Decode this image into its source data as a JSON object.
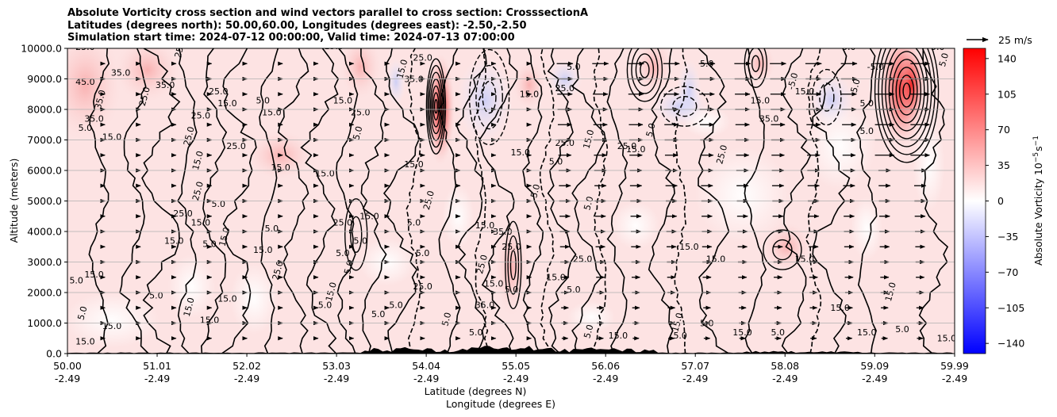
{
  "chart_data": {
    "type": "heatmap",
    "title_lines": [
      "Absolute Vorticity cross section and wind vectors parallel to cross section: CrosssectionA",
      "Latitudes (degrees north): 50.00,60.00, Longitudes (degrees east): -2.50,-2.50",
      "Simulation start time: 2024-07-12 00:00:00, Valid time: 2024-07-13 07:00:00"
    ],
    "ylabel": "Altitude (meters)",
    "xlabel_lines": [
      "Latitude (degrees N)",
      "Longitude (degrees E)"
    ],
    "ylim": [
      0,
      10000
    ],
    "y_ticks": [
      "0.0",
      "1000.0",
      "2000.0",
      "3000.0",
      "4000.0",
      "5000.0",
      "6000.0",
      "7000.0",
      "8000.0",
      "9000.0",
      "10000.0"
    ],
    "x_ticks": [
      {
        "lat": "50.00",
        "lon": "-2.49"
      },
      {
        "lat": "51.01",
        "lon": "-2.49"
      },
      {
        "lat": "52.02",
        "lon": "-2.49"
      },
      {
        "lat": "53.03",
        "lon": "-2.49"
      },
      {
        "lat": "54.04",
        "lon": "-2.49"
      },
      {
        "lat": "55.05",
        "lon": "-2.49"
      },
      {
        "lat": "56.06",
        "lon": "-2.49"
      },
      {
        "lat": "57.07",
        "lon": "-2.49"
      },
      {
        "lat": "58.08",
        "lon": "-2.49"
      },
      {
        "lat": "59.09",
        "lon": "-2.49"
      },
      {
        "lat": "59.99",
        "lon": "-2.49"
      }
    ],
    "colorbar": {
      "label": "Absolute Vorticity 10",
      "label_sup": "−5",
      "label_unit": "s",
      "label_unit_sup": "−1",
      "ticks": [
        "140",
        "105",
        "70",
        "35",
        "0",
        "−35",
        "−70",
        "−105",
        "−140"
      ],
      "range": [
        -150,
        150
      ],
      "colors": [
        "#0000ff",
        "#ffffff",
        "#ff0000"
      ]
    },
    "quiver_key": "25 m/s",
    "grid": "horizontal",
    "contour_labels": [
      {
        "t": "25.0",
        "x": 50.2,
        "y": 9950
      },
      {
        "t": "25.0",
        "x": 51.3,
        "y": 9980
      },
      {
        "t": "15.0",
        "x": 53.0,
        "y": 9980
      },
      {
        "t": "45.0",
        "x": 50.2,
        "y": 8800
      },
      {
        "t": "35.0",
        "x": 50.6,
        "y": 9100
      },
      {
        "t": "35.0",
        "x": 50.4,
        "y": 8300
      },
      {
        "t": "35.0",
        "x": 50.3,
        "y": 7600
      },
      {
        "t": "5.0",
        "x": 50.2,
        "y": 7300
      },
      {
        "t": "15.0",
        "x": 50.5,
        "y": 7000
      },
      {
        "t": "25.0",
        "x": 50.9,
        "y": 8400
      },
      {
        "t": "35.0",
        "x": 51.1,
        "y": 8700
      },
      {
        "t": "25.0",
        "x": 51.7,
        "y": 8500
      },
      {
        "t": "15.0",
        "x": 51.8,
        "y": 8100
      },
      {
        "t": "25.0",
        "x": 51.4,
        "y": 7100
      },
      {
        "t": "25.0",
        "x": 51.5,
        "y": 7700
      },
      {
        "t": "15.0",
        "x": 52.3,
        "y": 7800
      },
      {
        "t": "5.0",
        "x": 52.2,
        "y": 8200
      },
      {
        "t": "15.0",
        "x": 51.5,
        "y": 6300
      },
      {
        "t": "25.0",
        "x": 51.9,
        "y": 6700
      },
      {
        "t": "15.0",
        "x": 52.4,
        "y": 6000
      },
      {
        "t": "15.0",
        "x": 52.9,
        "y": 5800
      },
      {
        "t": "25.0",
        "x": 51.5,
        "y": 5300
      },
      {
        "t": "5.0",
        "x": 51.7,
        "y": 4800
      },
      {
        "t": "25.0",
        "x": 51.3,
        "y": 4500
      },
      {
        "t": "15.0",
        "x": 51.5,
        "y": 4200
      },
      {
        "t": "15.0",
        "x": 51.8,
        "y": 3800
      },
      {
        "t": "15.0",
        "x": 51.2,
        "y": 3600
      },
      {
        "t": "5.0",
        "x": 51.6,
        "y": 3500
      },
      {
        "t": "15.0",
        "x": 52.2,
        "y": 3300
      },
      {
        "t": "25.0",
        "x": 52.4,
        "y": 2700
      },
      {
        "t": "5.0",
        "x": 52.3,
        "y": 4000
      },
      {
        "t": "5.0",
        "x": 50.1,
        "y": 2300
      },
      {
        "t": "15.0",
        "x": 50.3,
        "y": 2500
      },
      {
        "t": "5.0",
        "x": 50.2,
        "y": 1300
      },
      {
        "t": "15.0",
        "x": 50.5,
        "y": 800
      },
      {
        "t": "15.0",
        "x": 50.2,
        "y": 300
      },
      {
        "t": "5.0",
        "x": 51.0,
        "y": 1800
      },
      {
        "t": "15.0",
        "x": 51.4,
        "y": 1500
      },
      {
        "t": "15.0",
        "x": 51.8,
        "y": 1700
      },
      {
        "t": "15.0",
        "x": 51.6,
        "y": 1000
      },
      {
        "t": "5.0",
        "x": 52.9,
        "y": 1500
      },
      {
        "t": "15.0",
        "x": 53.0,
        "y": 2000
      },
      {
        "t": "15.0",
        "x": 53.4,
        "y": 4400
      },
      {
        "t": "25.0",
        "x": 53.1,
        "y": 4200
      },
      {
        "t": "5.0",
        "x": 53.3,
        "y": 3600
      },
      {
        "t": "5.0",
        "x": 53.2,
        "y": 2800
      },
      {
        "t": "5.0",
        "x": 53.1,
        "y": 3200
      },
      {
        "t": "5.0",
        "x": 53.7,
        "y": 1500
      },
      {
        "t": "5.0",
        "x": 53.5,
        "y": 1200
      },
      {
        "t": "5.0",
        "x": 53.3,
        "y": 7200
      },
      {
        "t": "15.0",
        "x": 53.1,
        "y": 8200
      },
      {
        "t": "25.0",
        "x": 53.3,
        "y": 7800
      },
      {
        "t": "35.0",
        "x": 53.9,
        "y": 8900
      },
      {
        "t": "15.0",
        "x": 53.8,
        "y": 9300
      },
      {
        "t": "25.0",
        "x": 54.0,
        "y": 9600
      },
      {
        "t": "15.0",
        "x": 53.9,
        "y": 6100
      },
      {
        "t": "5.0",
        "x": 53.9,
        "y": 4200
      },
      {
        "t": "25.0",
        "x": 54.1,
        "y": 5000
      },
      {
        "t": "5.0",
        "x": 54.0,
        "y": 3200
      },
      {
        "t": "25.0",
        "x": 54.0,
        "y": 2100
      },
      {
        "t": "35.0",
        "x": 54.7,
        "y": 1500
      },
      {
        "t": "5.0",
        "x": 54.3,
        "y": 1100
      },
      {
        "t": "5.0",
        "x": 54.6,
        "y": 600
      },
      {
        "t": "15.0",
        "x": 54.7,
        "y": 4100
      },
      {
        "t": "35.0",
        "x": 54.9,
        "y": 3900
      },
      {
        "t": "25.0",
        "x": 54.7,
        "y": 2900
      },
      {
        "t": "15.0",
        "x": 54.8,
        "y": 2200
      },
      {
        "t": "5.0",
        "x": 55.0,
        "y": 2000
      },
      {
        "t": "25.0",
        "x": 55.0,
        "y": 3400
      },
      {
        "t": "5.0",
        "x": 55.3,
        "y": 5300
      },
      {
        "t": "15.0",
        "x": 55.1,
        "y": 6500
      },
      {
        "t": "5.0",
        "x": 55.5,
        "y": 6200
      },
      {
        "t": "25.0",
        "x": 55.6,
        "y": 6800
      },
      {
        "t": "15.0",
        "x": 55.9,
        "y": 7000
      },
      {
        "t": "15.0",
        "x": 55.2,
        "y": 8400
      },
      {
        "t": "25.0",
        "x": 55.6,
        "y": 8600
      },
      {
        "t": "5.0",
        "x": 55.7,
        "y": 9300
      },
      {
        "t": "5.0",
        "x": 55.9,
        "y": 4900
      },
      {
        "t": "25.0",
        "x": 55.8,
        "y": 3000
      },
      {
        "t": "15.0",
        "x": 55.5,
        "y": 2400
      },
      {
        "t": "5.0",
        "x": 55.7,
        "y": 2000
      },
      {
        "t": "5.0",
        "x": 55.9,
        "y": 700
      },
      {
        "t": "15.0",
        "x": 56.2,
        "y": 500
      },
      {
        "t": "25.0",
        "x": 56.3,
        "y": 6700
      },
      {
        "t": "15.0",
        "x": 56.4,
        "y": 6600
      },
      {
        "t": "5.0",
        "x": 56.6,
        "y": 7300
      },
      {
        "t": "5.0",
        "x": 57.2,
        "y": 9400
      },
      {
        "t": "15.0",
        "x": 57.0,
        "y": 3400
      },
      {
        "t": "15.0",
        "x": 57.3,
        "y": 3000
      },
      {
        "t": "15.0",
        "x": 56.9,
        "y": 1000
      },
      {
        "t": "5.0",
        "x": 57.2,
        "y": 900
      },
      {
        "t": "5.0",
        "x": 56.9,
        "y": 500
      },
      {
        "t": "15.0",
        "x": 57.6,
        "y": 600
      },
      {
        "t": "25.0",
        "x": 57.4,
        "y": 6500
      },
      {
        "t": "5.0",
        "x": 58.0,
        "y": 600
      },
      {
        "t": "15.0",
        "x": 57.8,
        "y": 8200
      },
      {
        "t": "15.0",
        "x": 58.3,
        "y": 8500
      },
      {
        "t": "-5.0",
        "x": 58.2,
        "y": 8900
      },
      {
        "t": "35.0",
        "x": 57.9,
        "y": 7600
      },
      {
        "t": "15.0",
        "x": 58.3,
        "y": 3000
      },
      {
        "t": "15.0",
        "x": 58.7,
        "y": 1400
      },
      {
        "t": "15.0",
        "x": 59.3,
        "y": 2000
      },
      {
        "t": "5.0",
        "x": 59.4,
        "y": 700
      },
      {
        "t": "15.0",
        "x": 59.0,
        "y": 600
      },
      {
        "t": "15.0",
        "x": 59.9,
        "y": 400
      },
      {
        "t": "-5.0",
        "x": 58.9,
        "y": 8700
      },
      {
        "t": "-5.0",
        "x": 59.1,
        "y": 9300
      },
      {
        "t": "5.0",
        "x": 59.0,
        "y": 8100
      },
      {
        "t": "5.0",
        "x": 59.0,
        "y": 7200
      },
      {
        "t": "5.0",
        "x": 59.9,
        "y": 9600
      },
      {
        "t": "5.0",
        "x": 59.8,
        "y": 9950
      },
      {
        "t": "5.0",
        "x": 58.8,
        "y": 9950
      }
    ]
  }
}
